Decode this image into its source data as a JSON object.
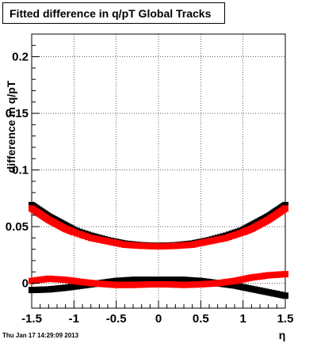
{
  "chart_data": {
    "type": "scatter",
    "title": "Fitted difference in q/pT  Global Tracks",
    "xlabel": "η",
    "ylabel": "difference in q/pT",
    "xlim": [
      -1.5,
      1.5
    ],
    "ylim": [
      -0.022,
      0.22
    ],
    "x_ticks": [
      "-1.5",
      "-1",
      "-0.5",
      "0",
      "0.5",
      "1",
      "1.5"
    ],
    "y_ticks": [
      "0",
      "0.05",
      "0.1",
      "0.15",
      "0.2"
    ],
    "grid": true,
    "colors": {
      "black_series": "#000000",
      "red_series": "#ff0000"
    },
    "series": [
      {
        "color": "#000000",
        "marker": "square",
        "x": [
          -1.5,
          -1.4,
          -1.3,
          -1.2,
          -1.1,
          -1.0,
          -0.8,
          -0.6,
          -0.4,
          -0.2,
          0.0,
          0.2,
          0.4,
          0.6,
          0.8,
          1.0,
          1.1,
          1.2,
          1.3,
          1.4,
          1.5
        ],
        "y": [
          0.069,
          0.064,
          0.059,
          0.055,
          0.051,
          0.047,
          0.042,
          0.038,
          0.035,
          0.0335,
          0.033,
          0.0335,
          0.035,
          0.038,
          0.042,
          0.047,
          0.051,
          0.055,
          0.059,
          0.064,
          0.069
        ]
      },
      {
        "color": "#ff0000",
        "marker": "square",
        "x": [
          -1.5,
          -1.4,
          -1.3,
          -1.2,
          -1.1,
          -1.0,
          -0.8,
          -0.6,
          -0.4,
          -0.2,
          0.0,
          0.2,
          0.4,
          0.6,
          0.8,
          1.0,
          1.1,
          1.2,
          1.3,
          1.4,
          1.5
        ],
        "y": [
          0.066,
          0.061,
          0.056,
          0.052,
          0.048,
          0.045,
          0.04,
          0.037,
          0.034,
          0.033,
          0.0325,
          0.033,
          0.034,
          0.037,
          0.04,
          0.045,
          0.048,
          0.052,
          0.056,
          0.061,
          0.066
        ]
      },
      {
        "color": "#000000",
        "marker": "square",
        "x": [
          -1.5,
          -1.3,
          -1.1,
          -0.9,
          -0.7,
          -0.5,
          -0.3,
          -0.1,
          0.1,
          0.3,
          0.5,
          0.7,
          0.9,
          1.1,
          1.3,
          1.5
        ],
        "y": [
          -0.006,
          -0.0055,
          -0.004,
          -0.002,
          0.0,
          0.002,
          0.003,
          0.003,
          0.003,
          0.003,
          0.002,
          0.0,
          -0.002,
          -0.005,
          -0.008,
          -0.011
        ]
      },
      {
        "color": "#ff0000",
        "marker": "square",
        "x": [
          -1.5,
          -1.3,
          -1.1,
          -0.9,
          -0.7,
          -0.5,
          -0.3,
          -0.1,
          0.1,
          0.3,
          0.5,
          0.7,
          0.9,
          1.1,
          1.3,
          1.5
        ],
        "y": [
          0.002,
          0.004,
          0.003,
          0.001,
          -0.0005,
          -0.0015,
          -0.0015,
          -0.001,
          -0.001,
          -0.0015,
          -0.001,
          0.0,
          0.002,
          0.005,
          0.007,
          0.008
        ]
      }
    ]
  },
  "footer": {
    "timestamp": "Thu Jan 17 14:29:09 2013"
  }
}
